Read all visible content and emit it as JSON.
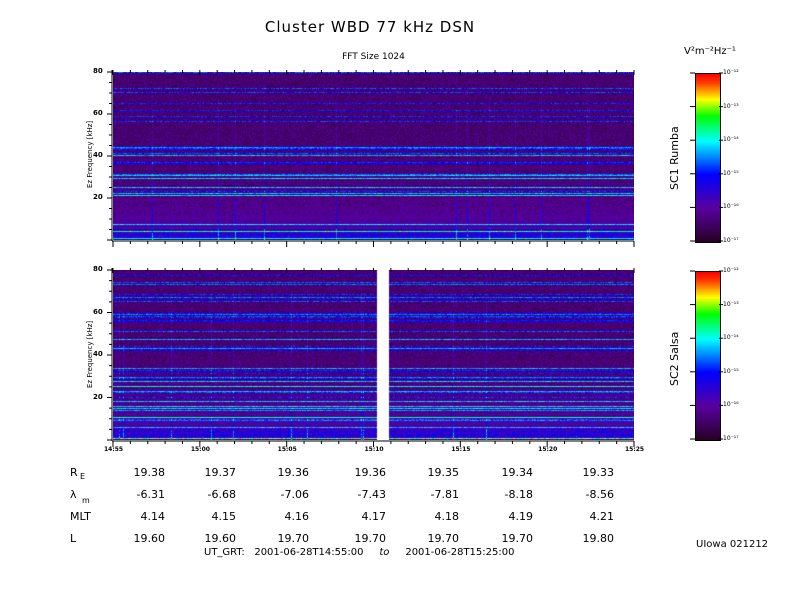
{
  "chart_data": [
    {
      "type": "heatmap",
      "title": "Cluster WBD 77 kHz DSN",
      "subtitle": "FFT Size 1024",
      "ylabel": "Ez Frequency [kHz]",
      "panel_label": "SC1 Rumba",
      "ylim": [
        0,
        80
      ],
      "yticks": [
        "20",
        "40",
        "60",
        "80"
      ],
      "xticks": [
        "14:55",
        "15:00",
        "15:05",
        "15:10",
        "15:15",
        "15:20",
        "15:25"
      ],
      "colorbar": {
        "label": "V²m⁻²Hz⁻¹",
        "ticks": [
          "10⁻¹²",
          "10⁻¹³",
          "10⁻¹⁴",
          "10⁻¹⁵",
          "10⁻¹⁶",
          "10⁻¹⁷"
        ],
        "range": [
          1e-17,
          1e-12
        ],
        "scale": "log"
      }
    },
    {
      "type": "heatmap",
      "ylabel": "Ez Frequency [kHz]",
      "panel_label": "SC2 Salsa",
      "ylim": [
        0,
        80
      ],
      "yticks": [
        "20",
        "40",
        "60",
        "80"
      ],
      "xticks": [
        "14:55",
        "15:00",
        "15:05",
        "15:10",
        "15:15",
        "15:20",
        "15:25"
      ],
      "data_gap": "about 15:10",
      "colorbar": {
        "ticks": [
          "10⁻¹²",
          "10⁻¹³",
          "10⁻¹⁴",
          "10⁻¹⁵",
          "10⁻¹⁶",
          "10⁻¹⁷"
        ],
        "range": [
          1e-17,
          1e-12
        ],
        "scale": "log"
      }
    }
  ],
  "ephemeris": [
    {
      "label": "R",
      "sub": "E",
      "values": [
        "19.38",
        "19.37",
        "19.36",
        "19.36",
        "19.35",
        "19.34",
        "19.33"
      ]
    },
    {
      "label": "λ",
      "sub": "m",
      "values": [
        "-6.31",
        "-6.68",
        "-7.06",
        "-7.43",
        "-7.81",
        "-8.18",
        "-8.56"
      ]
    },
    {
      "label": "MLT",
      "sub": "",
      "values": [
        "4.14",
        "4.15",
        "4.16",
        "4.17",
        "4.18",
        "4.19",
        "4.21"
      ]
    },
    {
      "label": "L",
      "sub": "",
      "values": [
        "19.60",
        "19.60",
        "19.70",
        "19.70",
        "19.70",
        "19.70",
        "19.80"
      ]
    }
  ],
  "time_range": {
    "label": "UT_GRT:",
    "start": "2001-06-28T14:55:00",
    "to": "to",
    "end": "2001-06-28T15:25:00"
  },
  "footer": "UIowa 021212"
}
